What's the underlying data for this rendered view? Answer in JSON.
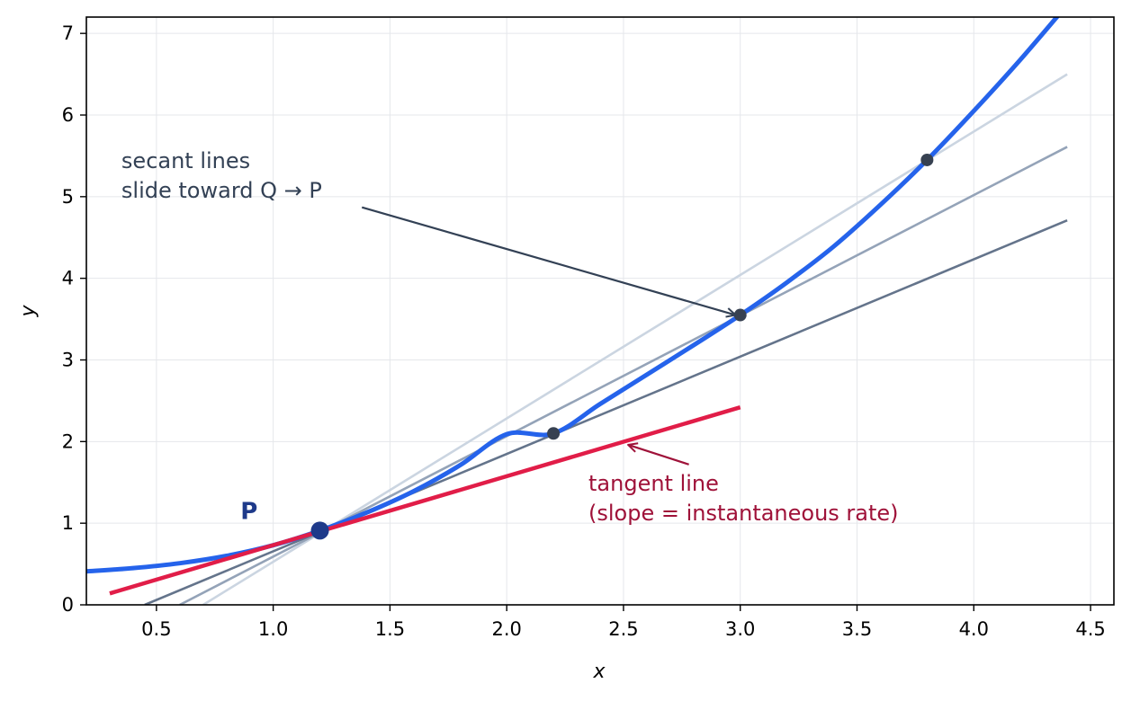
{
  "chart_data": {
    "type": "line",
    "title": "",
    "xlabel": "x",
    "ylabel": "y",
    "xlim": [
      0.2,
      4.6
    ],
    "ylim": [
      0,
      7.2
    ],
    "xticks": [
      "0.5",
      "1.0",
      "1.5",
      "2.0",
      "2.5",
      "3.0",
      "3.5",
      "4.0",
      "4.5"
    ],
    "yticks": [
      "0",
      "1",
      "2",
      "3",
      "4",
      "5",
      "6",
      "7"
    ],
    "grid": true,
    "series": [
      {
        "role": "curve",
        "color": "#2563eb",
        "x": [
          0.2,
          0.4,
          0.6,
          0.8,
          1.0,
          1.2,
          1.4,
          1.6,
          1.8,
          2.0,
          2.2,
          2.4,
          2.6,
          2.8,
          3.0,
          3.2,
          3.4,
          3.6,
          3.8,
          4.0,
          4.2,
          4.4
        ],
        "y": [
          0.41,
          0.45,
          0.51,
          0.6,
          0.73,
          0.91,
          1.13,
          1.39,
          1.71,
          2.09,
          2.1,
          2.46,
          2.82,
          3.18,
          3.55,
          3.95,
          4.39,
          4.9,
          5.45,
          6.05,
          6.68,
          7.35
        ]
      },
      {
        "role": "secant",
        "color": "#cbd5e1",
        "x": [
          0.7,
          4.4
        ],
        "y": [
          0.0,
          6.5
        ]
      },
      {
        "role": "secant",
        "color": "#94a3b8",
        "x": [
          0.6,
          4.4
        ],
        "y": [
          0.0,
          5.61
        ]
      },
      {
        "role": "secant",
        "color": "#64748b",
        "x": [
          0.45,
          4.4
        ],
        "y": [
          0.0,
          4.71
        ]
      },
      {
        "role": "tangent",
        "color": "#e11d48",
        "x": [
          0.3,
          3.0
        ],
        "y": [
          0.14,
          2.42
        ]
      }
    ],
    "points": [
      {
        "x": 1.2,
        "y": 0.91,
        "color": "#1e3a8a",
        "role": "P"
      },
      {
        "x": 2.2,
        "y": 2.1,
        "color": "#374151",
        "role": "Q"
      },
      {
        "x": 3.0,
        "y": 3.55,
        "color": "#374151",
        "role": "Q"
      },
      {
        "x": 3.8,
        "y": 5.45,
        "color": "#374151",
        "role": "Q"
      }
    ],
    "annotations": [
      {
        "lines": [
          "secant lines",
          "slide toward Q → P"
        ],
        "color": "#334155",
        "text_at": [
          0.35,
          5.35
        ],
        "arrow_from": [
          1.38,
          4.87
        ],
        "arrow_to": [
          2.98,
          3.55
        ]
      },
      {
        "lines": [
          "tangent line",
          "(slope = instantaneous rate)"
        ],
        "color": "#9f1239",
        "text_at": [
          2.35,
          1.4
        ],
        "arrow_from": [
          2.78,
          1.72
        ],
        "arrow_to": [
          2.52,
          1.96
        ]
      },
      {
        "lines": [
          "P"
        ],
        "color": "#1e3a8a",
        "text_at": [
          0.86,
          1.05
        ]
      }
    ]
  }
}
